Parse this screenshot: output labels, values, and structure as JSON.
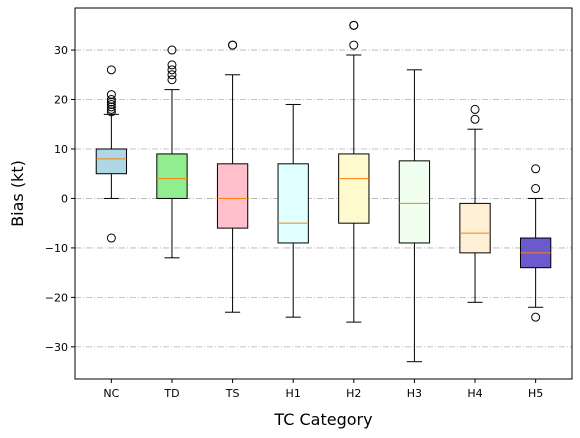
{
  "chart_data": {
    "type": "box",
    "title": "",
    "xlabel": "TC Category",
    "ylabel": "Bias (kt)",
    "ylim": [
      -36.5,
      38.5
    ],
    "yticks": [
      -30,
      -20,
      -10,
      0,
      10,
      20,
      30
    ],
    "grid": "y-dashdot",
    "median_color": "#ff7f0e",
    "categories": [
      "NC",
      "TD",
      "TS",
      "H1",
      "H2",
      "H3",
      "H4",
      "H5"
    ],
    "boxes": [
      {
        "label": "NC",
        "whisker_low": 0,
        "q1": 5,
        "median": 8,
        "q3": 10,
        "whisker_high": 17,
        "fliers": [
          26,
          21,
          20,
          19.5,
          19,
          18.5,
          18,
          17.5,
          -8
        ],
        "color": "#add8e6"
      },
      {
        "label": "TD",
        "whisker_low": -12,
        "q1": 0,
        "median": 4,
        "q3": 9,
        "whisker_high": 22,
        "fliers": [
          30,
          27,
          26,
          25,
          24
        ],
        "color": "#90ee90"
      },
      {
        "label": "TS",
        "whisker_low": -23,
        "q1": -6,
        "median": 0,
        "q3": 7,
        "whisker_high": 25,
        "fliers": [
          31,
          31
        ],
        "color": "#ffc0cb"
      },
      {
        "label": "H1",
        "whisker_low": -24,
        "q1": -9,
        "median": -5,
        "q3": 7,
        "whisker_high": 19,
        "fliers": [],
        "color": "#e0ffff"
      },
      {
        "label": "H2",
        "whisker_low": -25,
        "q1": -5,
        "median": 4,
        "q3": 9,
        "whisker_high": 29,
        "fliers": [
          35,
          35,
          31
        ],
        "color": "#fffacd"
      },
      {
        "label": "H3",
        "whisker_low": -33,
        "q1": -9,
        "median": -1,
        "q3": 7.6,
        "whisker_high": 26,
        "fliers": [],
        "color": "#f0fff0"
      },
      {
        "label": "H4",
        "whisker_low": -21,
        "q1": -11,
        "median": -7,
        "q3": -1,
        "whisker_high": 14,
        "fliers": [
          18,
          16
        ],
        "color": "#ffefd5"
      },
      {
        "label": "H5",
        "whisker_low": -22,
        "q1": -14,
        "median": -11,
        "q3": -8,
        "whisker_high": 0,
        "fliers": [
          6,
          2,
          -24
        ],
        "color": "#6a5acd"
      }
    ]
  }
}
